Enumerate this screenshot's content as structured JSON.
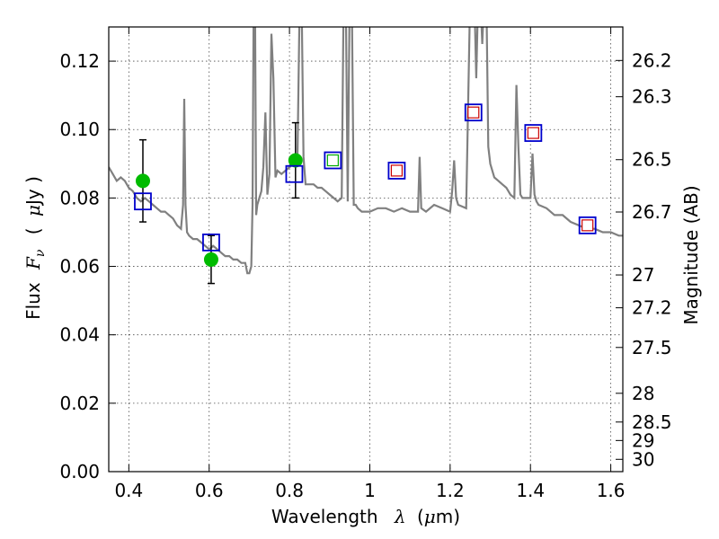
{
  "chart_data": {
    "type": "line",
    "xlabel_prefix": "Wavelength",
    "xlabel_symbol": "λ",
    "xlabel_unit_open": "(",
    "xlabel_unit_mu": "μ",
    "xlabel_unit_rest": "m)",
    "ylabel_prefix": "Flux",
    "ylabel_symbol": "F",
    "ylabel_subscript": "ν",
    "ylabel_unit_open": "(",
    "ylabel_unit_mu": "μ",
    "ylabel_unit_rest": "Jy )",
    "y2label": "Magnitude (AB)",
    "xlim": [
      0.35,
      1.63
    ],
    "ylim": [
      0.0,
      0.13
    ],
    "grid": true,
    "x_ticks": [
      {
        "value": 0.4,
        "label": "0.4"
      },
      {
        "value": 0.6,
        "label": "0.6"
      },
      {
        "value": 0.8,
        "label": "0.8"
      },
      {
        "value": 1.0,
        "label": "1"
      },
      {
        "value": 1.2,
        "label": "1.2"
      },
      {
        "value": 1.4,
        "label": "1.4"
      },
      {
        "value": 1.6,
        "label": "1.6"
      }
    ],
    "y_ticks": [
      {
        "value": 0.0,
        "label": "0.00"
      },
      {
        "value": 0.02,
        "label": "0.02"
      },
      {
        "value": 0.04,
        "label": "0.04"
      },
      {
        "value": 0.06,
        "label": "0.06"
      },
      {
        "value": 0.08,
        "label": "0.08"
      },
      {
        "value": 0.1,
        "label": "0.10"
      },
      {
        "value": 0.12,
        "label": "0.12"
      }
    ],
    "mag_ticks": [
      {
        "label": "26.2",
        "flux": 0.1202
      },
      {
        "label": "26.3",
        "flux": 0.1096
      },
      {
        "label": "26.5",
        "flux": 0.0912
      },
      {
        "label": "26.7",
        "flux": 0.0759
      },
      {
        "label": "27",
        "flux": 0.0575
      },
      {
        "label": "27.2",
        "flux": 0.0479
      },
      {
        "label": "27.5",
        "flux": 0.0363
      },
      {
        "label": "28",
        "flux": 0.0229
      },
      {
        "label": "28.5",
        "flux": 0.0145
      },
      {
        "label": "29",
        "flux": 0.0091
      },
      {
        "label": "30",
        "flux": 0.0036
      }
    ],
    "colors": {
      "model": "#808080",
      "observed": "#00bb00",
      "model_box": "#0000cc",
      "inner_red": "#cc0000",
      "inner_green": "#00aa00",
      "errorbar": "#000000"
    },
    "model_spectrum": {
      "x": [
        0.35,
        0.36,
        0.37,
        0.38,
        0.39,
        0.4,
        0.41,
        0.42,
        0.43,
        0.44,
        0.45,
        0.46,
        0.47,
        0.48,
        0.49,
        0.5,
        0.51,
        0.52,
        0.53,
        0.535,
        0.538,
        0.541,
        0.545,
        0.55,
        0.56,
        0.57,
        0.58,
        0.59,
        0.6,
        0.61,
        0.62,
        0.63,
        0.64,
        0.65,
        0.66,
        0.67,
        0.68,
        0.69,
        0.695,
        0.7,
        0.705,
        0.708,
        0.711,
        0.714,
        0.717,
        0.72,
        0.73,
        0.735,
        0.74,
        0.745,
        0.75,
        0.755,
        0.76,
        0.765,
        0.77,
        0.78,
        0.79,
        0.8,
        0.81,
        0.82,
        0.825,
        0.83,
        0.835,
        0.84,
        0.85,
        0.86,
        0.87,
        0.88,
        0.89,
        0.9,
        0.91,
        0.92,
        0.93,
        0.935,
        0.94,
        0.945,
        0.95,
        0.955,
        0.96,
        0.965,
        0.97,
        0.98,
        0.99,
        1.0,
        1.02,
        1.04,
        1.06,
        1.08,
        1.1,
        1.12,
        1.124,
        1.128,
        1.14,
        1.16,
        1.18,
        1.2,
        1.205,
        1.21,
        1.215,
        1.22,
        1.24,
        1.25,
        1.26,
        1.265,
        1.27,
        1.275,
        1.28,
        1.285,
        1.29,
        1.295,
        1.3,
        1.31,
        1.32,
        1.33,
        1.34,
        1.35,
        1.36,
        1.365,
        1.37,
        1.375,
        1.38,
        1.39,
        1.4,
        1.405,
        1.41,
        1.415,
        1.42,
        1.44,
        1.46,
        1.48,
        1.5,
        1.52,
        1.54,
        1.56,
        1.58,
        1.6,
        1.62,
        1.63
      ],
      "y": [
        0.089,
        0.087,
        0.085,
        0.086,
        0.085,
        0.083,
        0.082,
        0.08,
        0.079,
        0.08,
        0.079,
        0.078,
        0.077,
        0.076,
        0.076,
        0.075,
        0.074,
        0.072,
        0.071,
        0.078,
        0.109,
        0.078,
        0.07,
        0.069,
        0.068,
        0.068,
        0.067,
        0.066,
        0.065,
        0.066,
        0.065,
        0.064,
        0.063,
        0.063,
        0.062,
        0.062,
        0.061,
        0.061,
        0.058,
        0.058,
        0.06,
        0.078,
        0.14,
        0.14,
        0.075,
        0.078,
        0.082,
        0.089,
        0.105,
        0.081,
        0.087,
        0.128,
        0.115,
        0.086,
        0.088,
        0.087,
        0.088,
        0.089,
        0.09,
        0.092,
        0.135,
        0.14,
        0.092,
        0.084,
        0.084,
        0.084,
        0.083,
        0.083,
        0.082,
        0.081,
        0.08,
        0.079,
        0.08,
        0.14,
        0.14,
        0.079,
        0.14,
        0.14,
        0.078,
        0.078,
        0.077,
        0.076,
        0.076,
        0.076,
        0.077,
        0.077,
        0.076,
        0.077,
        0.076,
        0.076,
        0.092,
        0.077,
        0.076,
        0.078,
        0.077,
        0.076,
        0.082,
        0.091,
        0.08,
        0.078,
        0.077,
        0.14,
        0.14,
        0.115,
        0.14,
        0.14,
        0.125,
        0.14,
        0.14,
        0.095,
        0.09,
        0.086,
        0.085,
        0.084,
        0.083,
        0.081,
        0.08,
        0.113,
        0.095,
        0.081,
        0.08,
        0.08,
        0.08,
        0.093,
        0.081,
        0.079,
        0.078,
        0.077,
        0.075,
        0.075,
        0.073,
        0.072,
        0.071,
        0.071,
        0.07,
        0.07,
        0.069,
        0.069
      ]
    },
    "observed": [
      {
        "x": 0.435,
        "y": 0.085,
        "err_low": 0.073,
        "err_high": 0.097
      },
      {
        "x": 0.605,
        "y": 0.062,
        "err_low": 0.055,
        "err_high": 0.069
      },
      {
        "x": 0.815,
        "y": 0.091,
        "err_low": 0.08,
        "err_high": 0.102
      }
    ],
    "model_photometry": [
      {
        "x": 0.435,
        "y": 0.079,
        "inner": "none"
      },
      {
        "x": 0.605,
        "y": 0.067,
        "inner": "none"
      },
      {
        "x": 0.812,
        "y": 0.087,
        "inner": "none"
      },
      {
        "x": 0.908,
        "y": 0.091,
        "inner": "green"
      },
      {
        "x": 1.067,
        "y": 0.088,
        "inner": "red"
      },
      {
        "x": 1.258,
        "y": 0.105,
        "inner": "red"
      },
      {
        "x": 1.407,
        "y": 0.099,
        "inner": "red"
      },
      {
        "x": 1.542,
        "y": 0.072,
        "inner": "red"
      }
    ]
  }
}
